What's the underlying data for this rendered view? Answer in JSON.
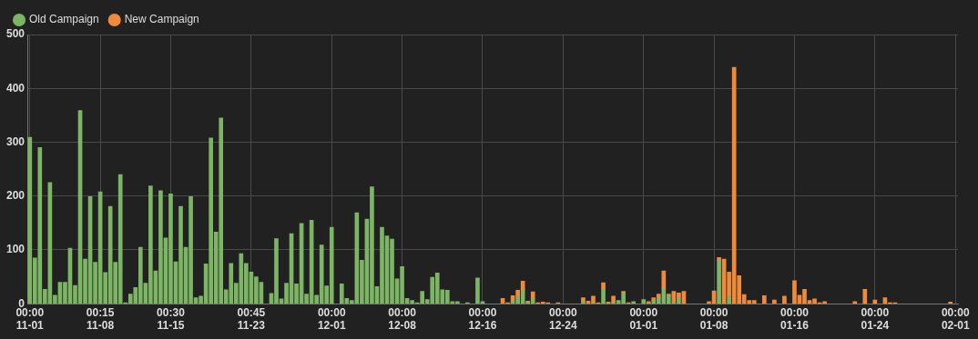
{
  "chart_data": {
    "type": "bar",
    "stacked": true,
    "grid": true,
    "legend": "top left",
    "categories": [
      "00:00\n11-01",
      null,
      null,
      null,
      null,
      null,
      null,
      null,
      null,
      null,
      null,
      null,
      null,
      null,
      "00:15\n11-08",
      null,
      null,
      null,
      null,
      null,
      null,
      null,
      null,
      null,
      null,
      null,
      null,
      null,
      "00:30\n11-15",
      null,
      null,
      null,
      null,
      null,
      null,
      null,
      null,
      null,
      null,
      null,
      null,
      null,
      null,
      null,
      "00:45\n11-23",
      null,
      null,
      null,
      null,
      null,
      null,
      null,
      null,
      null,
      null,
      null,
      null,
      null,
      null,
      null,
      "00:00\n12-01",
      null,
      null,
      null,
      null,
      null,
      null,
      null,
      null,
      null,
      null,
      null,
      null,
      null,
      "00:00\n12-08",
      null,
      null,
      null,
      null,
      null,
      null,
      null,
      null,
      null,
      null,
      null,
      null,
      null,
      null,
      null,
      "00:00\n12-16",
      null,
      null,
      null,
      null,
      null,
      null,
      null,
      null,
      null,
      null,
      null,
      null,
      null,
      null,
      null,
      "00:00\n12-24",
      null,
      null,
      null,
      null,
      null,
      null,
      null,
      null,
      null,
      null,
      null,
      null,
      null,
      null,
      null,
      "00:00\n01-01",
      null,
      null,
      null,
      null,
      null,
      null,
      null,
      null,
      null,
      null,
      null,
      null,
      null,
      "00:00\n01-08",
      null,
      null,
      null,
      null,
      null,
      null,
      null,
      null,
      null,
      null,
      null,
      null,
      null,
      null,
      null,
      "00:00\n01-16",
      null,
      null,
      null,
      null,
      null,
      null,
      null,
      null,
      null,
      null,
      null,
      null,
      null,
      null,
      null,
      "00:00\n01-24",
      null,
      null,
      null,
      null,
      null,
      null,
      null,
      null,
      null,
      null,
      null,
      null,
      null,
      null,
      null,
      "00:00\n02-01"
    ],
    "ylim": [
      0,
      500
    ],
    "yticks": [
      0,
      100,
      200,
      300,
      400,
      500
    ],
    "series": [
      {
        "name": "Old Campaign",
        "color": "#7cb563",
        "values": [
          309,
          85,
          290,
          27,
          225,
          16,
          40,
          40,
          103,
          34,
          359,
          83,
          199,
          77,
          208,
          58,
          181,
          77,
          240,
          2,
          18,
          30,
          105,
          38,
          219,
          61,
          210,
          122,
          204,
          78,
          181,
          105,
          199,
          11,
          14,
          74,
          308,
          133,
          345,
          26,
          75,
          38,
          93,
          75,
          59,
          50,
          40,
          null,
          19,
          121,
          9,
          38,
          130,
          37,
          149,
          18,
          155,
          16,
          109,
          33,
          142,
          null,
          37,
          10,
          6,
          169,
          81,
          157,
          217,
          32,
          142,
          126,
          120,
          46,
          69,
          10,
          6,
          2,
          23,
          8,
          49,
          57,
          26,
          25,
          4,
          4,
          null,
          2,
          null,
          48,
          4,
          null,
          null,
          null,
          null,
          null,
          5,
          13,
          26,
          2,
          9,
          null,
          null,
          null,
          null,
          null,
          null,
          null,
          null,
          null,
          4,
          null,
          2,
          null,
          27,
          null,
          3,
          6,
          20,
          null,
          4,
          null,
          8,
          null,
          6,
          11,
          28,
          15,
          2,
          10,
          null,
          null,
          null,
          null,
          null,
          null,
          null,
          80,
          null,
          13,
          null,
          null,
          null,
          null,
          null,
          null,
          null,
          null,
          null,
          null,
          null,
          null,
          null,
          null,
          null,
          null,
          null,
          null,
          null,
          null,
          null,
          null,
          null,
          null,
          null,
          null,
          null,
          null,
          null,
          null,
          null,
          null,
          null,
          null,
          null,
          null,
          null,
          null,
          null,
          null,
          null,
          null,
          null,
          null,
          null
        ]
      },
      {
        "name": "New Campaign",
        "color": "#ef8a3a",
        "values": [
          null,
          null,
          null,
          null,
          null,
          null,
          null,
          null,
          null,
          null,
          null,
          null,
          null,
          null,
          null,
          null,
          null,
          null,
          null,
          null,
          null,
          null,
          null,
          null,
          null,
          null,
          null,
          null,
          null,
          null,
          null,
          null,
          null,
          null,
          null,
          null,
          null,
          null,
          null,
          null,
          null,
          null,
          null,
          null,
          null,
          null,
          null,
          null,
          null,
          null,
          null,
          null,
          null,
          null,
          null,
          null,
          null,
          null,
          null,
          null,
          null,
          null,
          null,
          null,
          null,
          null,
          null,
          null,
          null,
          null,
          null,
          null,
          null,
          null,
          null,
          null,
          null,
          null,
          null,
          null,
          null,
          null,
          null,
          null,
          null,
          null,
          null,
          null,
          null,
          null,
          null,
          null,
          null,
          null,
          10,
          2,
          10,
          12,
          16,
          3,
          13,
          2,
          3,
          2,
          null,
          2,
          null,
          null,
          null,
          null,
          7,
          5,
          12,
          2,
          12,
          3,
          11,
          null,
          3,
          2,
          null,
          null,
          null,
          4,
          5,
          7,
          33,
          3,
          21,
          10,
          23,
          null,
          null,
          null,
          null,
          4,
          24,
          6,
          83,
          46,
          439,
          52,
          17,
          6,
          6,
          null,
          15,
          null,
          7,
          null,
          14,
          null,
          43,
          16,
          27,
          6,
          9,
          2,
          4,
          null,
          null,
          null,
          null,
          null,
          4,
          null,
          27,
          null,
          7,
          null,
          11,
          2,
          2,
          null,
          null,
          null,
          null,
          null,
          null,
          null,
          null,
          null,
          null,
          3,
          null
        ]
      }
    ]
  }
}
